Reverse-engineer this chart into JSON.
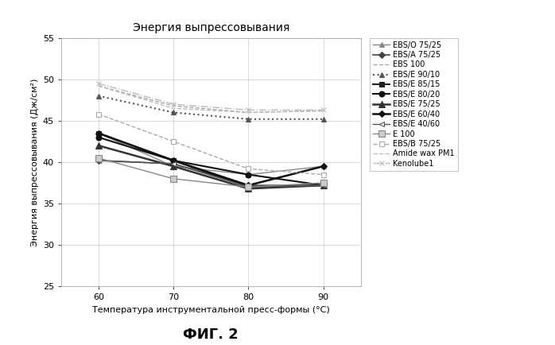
{
  "title": "Энергия выпрессовывания",
  "xlabel": "Температура инструментальной пресс-формы (°C)",
  "ylabel": "Энергия выпрессовывания (Дж/см²)",
  "caption": "ФИГ. 2",
  "x": [
    60,
    70,
    80,
    90
  ],
  "ylim": [
    25,
    55
  ],
  "yticks": [
    25,
    30,
    35,
    40,
    45,
    50,
    55
  ],
  "series": [
    {
      "label": "EBS/O 75/25",
      "values": [
        43.5,
        39.5,
        38.5,
        39.5
      ],
      "color": "#888888",
      "linestyle": "-",
      "marker": "^",
      "markersize": 5,
      "linewidth": 1.0,
      "markerfacecolor": "#888888",
      "markeredgecolor": "#888888"
    },
    {
      "label": "EBS/A 75/25",
      "values": [
        40.2,
        39.8,
        37.2,
        37.2
      ],
      "color": "#444444",
      "linestyle": "-",
      "marker": "D",
      "markersize": 4,
      "linewidth": 1.2,
      "markerfacecolor": "#444444",
      "markeredgecolor": "#444444"
    },
    {
      "label": "EBS 100",
      "values": [
        49.2,
        46.8,
        46.0,
        46.2
      ],
      "color": "#aaaaaa",
      "linestyle": "--",
      "marker": null,
      "markersize": 4,
      "linewidth": 1.0,
      "markerfacecolor": "#aaaaaa",
      "markeredgecolor": "#aaaaaa"
    },
    {
      "label": "EBS/E 90/10",
      "values": [
        48.0,
        46.0,
        45.2,
        45.2
      ],
      "color": "#555555",
      "linestyle": ":",
      "marker": "^",
      "markersize": 5,
      "linewidth": 1.5,
      "markerfacecolor": "#555555",
      "markeredgecolor": "#555555"
    },
    {
      "label": "EBS/E 85/15",
      "values": [
        43.5,
        40.2,
        37.0,
        37.2
      ],
      "color": "#222222",
      "linestyle": "-",
      "marker": "s",
      "markersize": 5,
      "linewidth": 1.5,
      "markerfacecolor": "#222222",
      "markeredgecolor": "#222222"
    },
    {
      "label": "EBS/E 80/20",
      "values": [
        43.0,
        40.2,
        38.5,
        37.2
      ],
      "color": "#111111",
      "linestyle": "-",
      "marker": "o",
      "markersize": 5,
      "linewidth": 1.5,
      "markerfacecolor": "#111111",
      "markeredgecolor": "#111111"
    },
    {
      "label": "EBS/E 75/25",
      "values": [
        42.0,
        39.5,
        36.8,
        37.2
      ],
      "color": "#333333",
      "linestyle": "-",
      "marker": "^",
      "markersize": 6,
      "linewidth": 1.8,
      "markerfacecolor": "#333333",
      "markeredgecolor": "#333333"
    },
    {
      "label": "EBS/E 60/40",
      "values": [
        43.5,
        40.2,
        37.2,
        39.5
      ],
      "color": "#111111",
      "linestyle": "-",
      "marker": "D",
      "markersize": 4,
      "linewidth": 1.8,
      "markerfacecolor": "#111111",
      "markeredgecolor": "#111111"
    },
    {
      "label": "EBS/E 40/60",
      "values": [
        40.2,
        39.8,
        37.0,
        37.2
      ],
      "color": "#555555",
      "linestyle": "-",
      "marker": "<",
      "markersize": 5,
      "linewidth": 1.0,
      "markerfacecolor": "white",
      "markeredgecolor": "#555555"
    },
    {
      "label": "E 100",
      "values": [
        40.5,
        38.0,
        37.0,
        37.5
      ],
      "color": "#888888",
      "linestyle": "-",
      "marker": "s",
      "markersize": 6,
      "linewidth": 1.0,
      "markerfacecolor": "#cccccc",
      "markeredgecolor": "#888888"
    },
    {
      "label": "EBS/B 75/25",
      "values": [
        45.8,
        42.5,
        39.2,
        38.5
      ],
      "color": "#aaaaaa",
      "linestyle": "--",
      "marker": "s",
      "markersize": 5,
      "linewidth": 1.0,
      "markerfacecolor": "white",
      "markeredgecolor": "#aaaaaa"
    },
    {
      "label": "Amide wax PM1",
      "values": [
        49.2,
        46.5,
        46.0,
        46.2
      ],
      "color": "#bbbbbb",
      "linestyle": "--",
      "marker": null,
      "markersize": 4,
      "linewidth": 1.0,
      "markerfacecolor": "#bbbbbb",
      "markeredgecolor": "#bbbbbb"
    },
    {
      "label": "Kenolube1",
      "values": [
        49.5,
        47.0,
        46.3,
        46.3
      ],
      "color": "#bbbbbb",
      "linestyle": "-.",
      "marker": "x",
      "markersize": 5,
      "linewidth": 1.0,
      "markerfacecolor": "#bbbbbb",
      "markeredgecolor": "#bbbbbb"
    }
  ]
}
